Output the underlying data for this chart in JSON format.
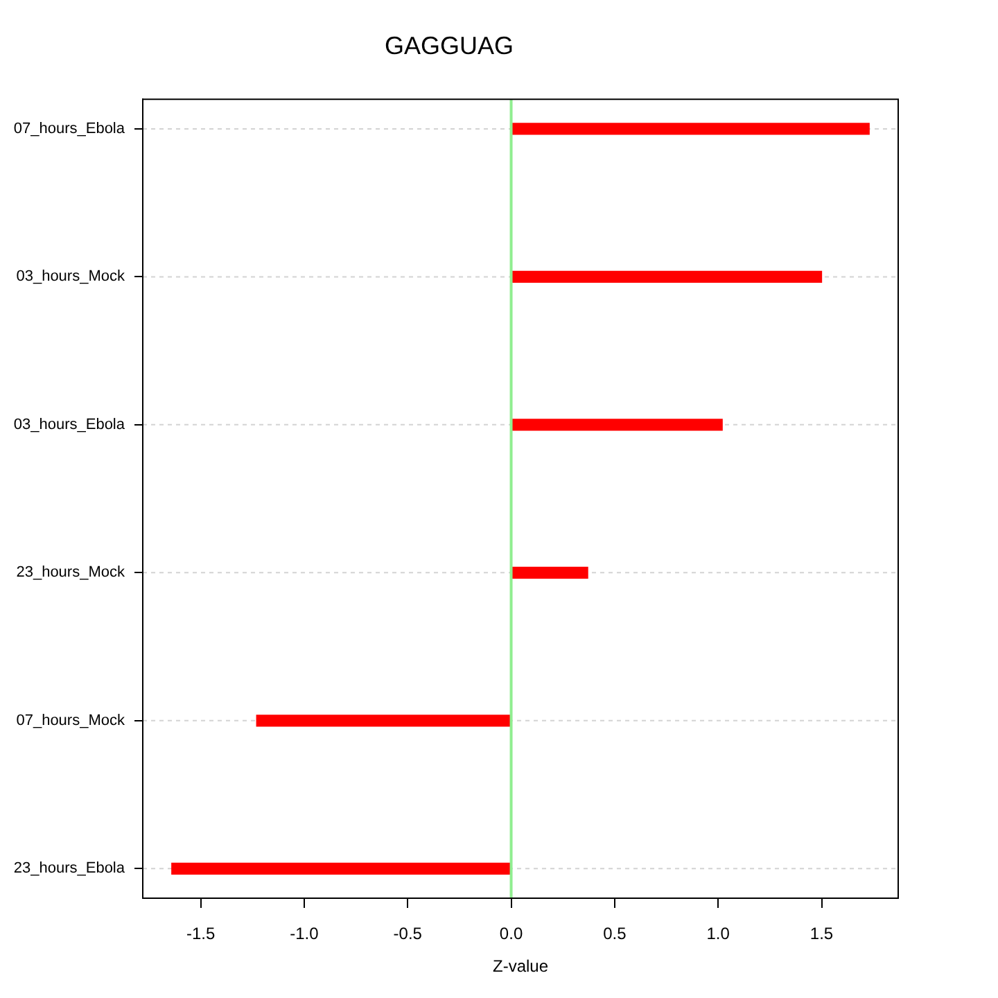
{
  "chart_data": {
    "type": "bar",
    "title": "GAGGUAG",
    "xlabel": "Z-value",
    "orientation": "horizontal",
    "categories": [
      "07_hours_Ebola",
      "03_hours_Mock",
      "03_hours_Ebola",
      "23_hours_Mock",
      "07_hours_Mock",
      "23_hours_Ebola"
    ],
    "values": [
      1.73,
      1.5,
      1.02,
      0.37,
      -1.23,
      -1.64
    ],
    "color": "#ff0000",
    "xlim": [
      -1.78,
      1.87
    ],
    "xticks": [
      -1.5,
      {
        "value": -1,
        "label": "-1.0"
      },
      -0.5,
      {
        "value": 0,
        "label": "0.0"
      },
      0.5,
      {
        "value": 1,
        "label": "1.0"
      },
      1.5
    ],
    "grid": "y",
    "ref_lines": [
      {
        "axis": "x",
        "value": 0,
        "color": "#90ee90"
      }
    ],
    "legend": false
  }
}
